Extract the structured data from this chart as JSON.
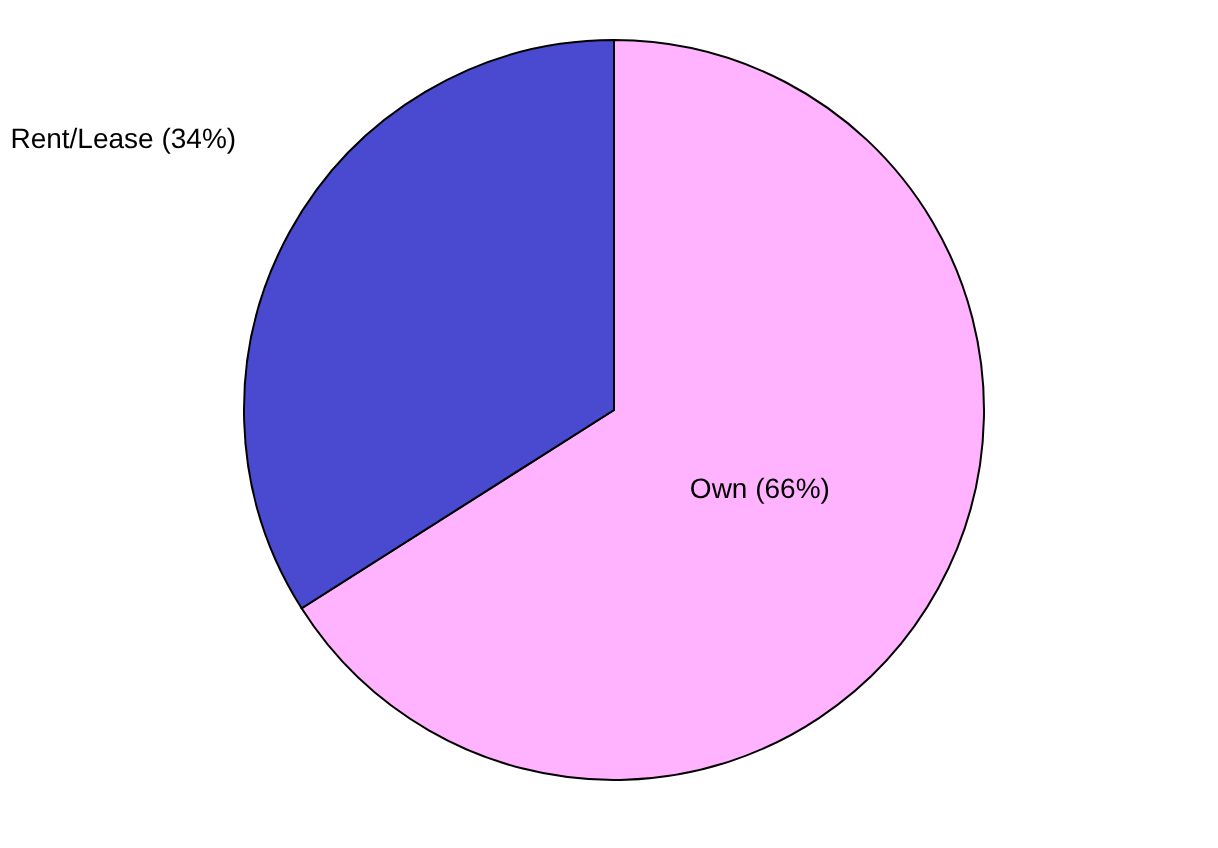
{
  "chart_data": {
    "type": "pie",
    "categories": [
      "Own",
      "Rent/Lease"
    ],
    "values": [
      66,
      34
    ],
    "colors": [
      "#ffb3ff",
      "#4a4ad0"
    ],
    "value_labels": [
      "(66%)",
      "(34%)"
    ],
    "legend": false
  }
}
